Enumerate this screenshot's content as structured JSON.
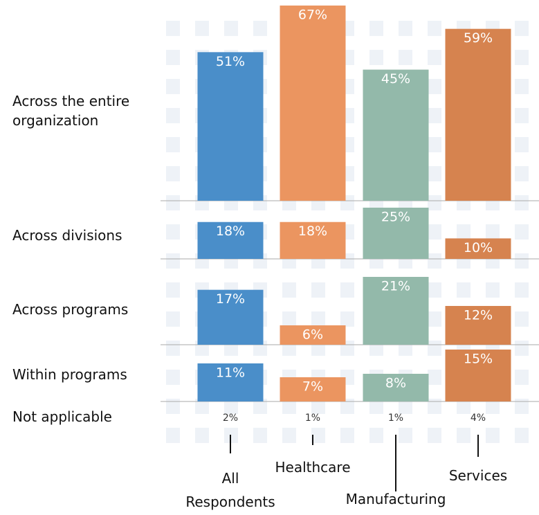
{
  "chart_data": {
    "type": "panel-bar",
    "categories": [
      "Across the entire organization",
      "Across divisions",
      "Across programs",
      "Within programs",
      "Not applicable"
    ],
    "series": [
      {
        "name": "All Respondents",
        "color": "#4a8ec9",
        "values": [
          51,
          18,
          17,
          11,
          2
        ],
        "value_labels": [
          "51%",
          "18%",
          "17%",
          "11%",
          "2%"
        ]
      },
      {
        "name": "Healthcare",
        "color": "#eb9560",
        "values": [
          67,
          18,
          6,
          7,
          1
        ],
        "value_labels": [
          "67%",
          "18%",
          "6%",
          "7%",
          "1%"
        ]
      },
      {
        "name": "Manufacturing",
        "color": "#93b9aa",
        "values": [
          45,
          25,
          21,
          8,
          1
        ],
        "value_labels": [
          "45%",
          "25%",
          "21%",
          "8%",
          "1%"
        ]
      },
      {
        "name": "Services",
        "color": "#d6834f",
        "values": [
          59,
          10,
          12,
          15,
          4
        ],
        "value_labels": [
          "59%",
          "10%",
          "12%",
          "15%",
          "4%"
        ]
      }
    ]
  }
}
